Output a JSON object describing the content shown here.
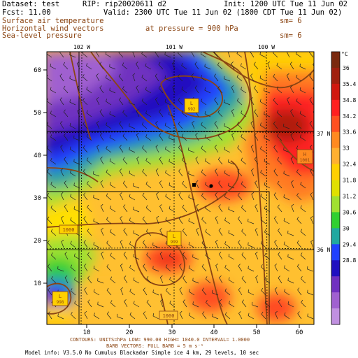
{
  "header": {
    "dataset": "Dataset: test",
    "rip": "RIP: rip20020611 d2",
    "init": "Init: 1200 UTC Tue 11 Jun 02",
    "fcst": "Fcst:   11.00",
    "valid": "Valid: 2300 UTC Tue 11 Jun 02 (1800 CDT Tue 11 Jun 02)"
  },
  "fields": {
    "field1": "Surface air temperature",
    "field1_sm": "sm= 6",
    "field2": "Horizontal wind vectors",
    "field2_pressure": "at pressure =  900 hPa",
    "field3": "Sea-level pressure",
    "field3_sm": "sm= 6"
  },
  "axes": {
    "x_ticks": [
      "10",
      "20",
      "30",
      "40",
      "50",
      "60"
    ],
    "y_ticks": [
      "10",
      "20",
      "30",
      "40",
      "50",
      "60"
    ],
    "lon_labels": [
      "102 W",
      "101 W",
      "100 W"
    ],
    "lat_labels": [
      "37 N",
      "36 N"
    ]
  },
  "colorbar": {
    "unit": "°C",
    "labels": [
      "36",
      "35.4",
      "34.8",
      "34.2",
      "33.6",
      "33",
      "32.4",
      "31.8",
      "31.2",
      "30.6",
      "30",
      "29.4",
      "28.8"
    ],
    "colors": [
      "#7a2a10",
      "#a02010",
      "#d01810",
      "#ff2020",
      "#ff5020",
      "#ff8a20",
      "#ffb030",
      "#ffd000",
      "#e0e000",
      "#a0e030",
      "#30d030",
      "#20a8a0",
      "#2040ff",
      "#2010c0",
      "#7030c0",
      "#a060d0",
      "#c090e0"
    ]
  },
  "map_labels": {
    "lows": [
      {
        "letter": "L",
        "value": "992"
      },
      {
        "letter": "L",
        "value": "999"
      },
      {
        "letter": "L",
        "value": "998"
      }
    ],
    "high": {
      "letter": "H",
      "value": "1001"
    },
    "contour_labels": [
      "1000",
      "1000"
    ]
  },
  "footer": {
    "contours": "CONTOURS:  UNITS=hPa  LOW=   990.00     HIGH=  1040.0     INTERVAL=   1.0000",
    "barbs": "BARB VECTORS:  FULL BARB = 5 m s⁻¹",
    "model": "Model info: V3.5.0 No Cumulus Blackadar  Simple ice    4 km,  29 levels,   10 sec"
  }
}
